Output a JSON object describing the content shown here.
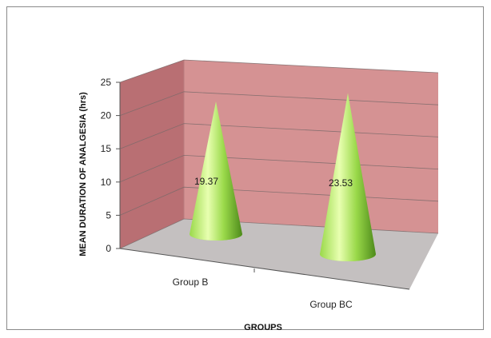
{
  "chart_data": {
    "type": "bar",
    "shape": "cone-3d",
    "categories": [
      "Group B",
      "Group BC"
    ],
    "series": [
      {
        "values": [
          19.37,
          23.53
        ]
      }
    ],
    "data_labels": [
      "19.37",
      "23.53"
    ],
    "xlabel": "GROUPS",
    "ylabel": "MEAN DURATION OF ANALGESIA (hrs)",
    "ylim": [
      0,
      25
    ],
    "yticks": [
      0,
      5,
      10,
      15,
      20,
      25
    ],
    "ytick_labels": [
      "0",
      "5",
      "10",
      "15",
      "20",
      "25"
    ],
    "grid": true,
    "legend": "none",
    "colors": {
      "back_wall": "#d59293",
      "side_wall": "#b96f73",
      "floor": "#c4c0c0",
      "cone_light": "#e8ffb0",
      "cone_mid": "#9ad94a",
      "cone_dark": "#4d8a1a"
    }
  }
}
